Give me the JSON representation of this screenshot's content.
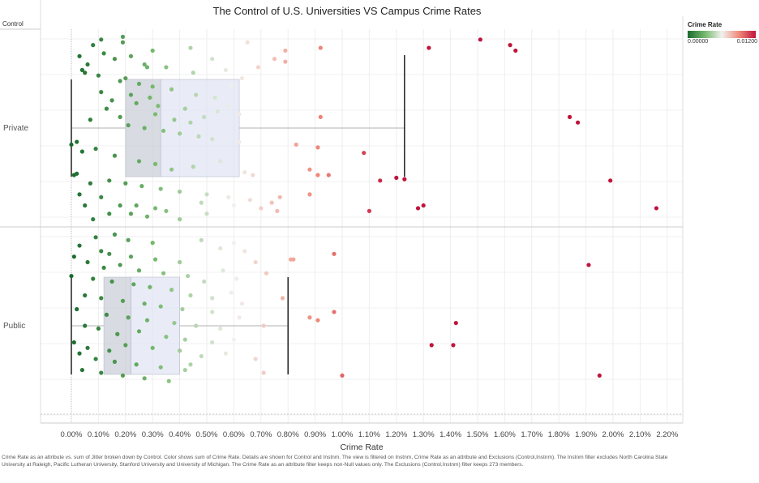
{
  "title": "The Control of U.S. Universities VS Campus Crime Rates",
  "row_header": "Control",
  "legend": {
    "title": "Crime Rate",
    "min_label": "0.00000",
    "max_label": "0.01200",
    "colors": [
      "#1a6b2e",
      "#74b86c",
      "#f1f1ee",
      "#f08c7c",
      "#c0143c"
    ]
  },
  "footnote": "Crime Rate as an attribute vs. sum of Jitter broken down by Control.  Color shows sum of Crime Rate.  Details are shown for Control and Instnm. The view is filtered on Instnm, Crime Rate as an attribute and Exclusions (Control,Instnm). The Instnm filter excludes North Carolina State University at Raleigh, Pacific Lutheran University, Stanford University and University of Michigan. The Crime Rate as an attribute filter keeps non-Null values only. The Exclusions (Control,Instnm) filter keeps 273 members.",
  "chart_data": {
    "type": "scatter",
    "subtype": "jittered strip plot with box plots",
    "xlabel": "Crime Rate",
    "xlim": [
      0,
      0.022
    ],
    "xticks": [
      "0.00%",
      "0.10%",
      "0.20%",
      "0.30%",
      "0.40%",
      "0.50%",
      "0.60%",
      "0.70%",
      "0.80%",
      "0.90%",
      "1.00%",
      "1.10%",
      "1.20%",
      "1.30%",
      "1.40%",
      "1.50%",
      "1.60%",
      "1.70%",
      "1.80%",
      "1.90%",
      "2.00%",
      "2.10%",
      "2.20%"
    ],
    "grid": true,
    "legend_placement": "top-right",
    "categories": [
      "Private",
      "Public"
    ],
    "box_plots": [
      {
        "category": "Private",
        "whisker_low": 0.0,
        "q1": 0.002,
        "median": 0.0033,
        "q3": 0.0062,
        "whisker_high": 0.0123
      },
      {
        "category": "Public",
        "whisker_low": 0.0,
        "q1": 0.0012,
        "median": 0.0022,
        "q3": 0.004,
        "whisker_high": 0.008
      }
    ],
    "series": [
      {
        "name": "Private",
        "points": [
          [
            0.0019,
            0.04
          ],
          [
            0.0011,
            0.08
          ],
          [
            0.0019,
            0.12
          ],
          [
            0.003,
            0.24
          ],
          [
            0.0044,
            0.2
          ],
          [
            0.0065,
            0.12
          ],
          [
            0.0028,
            0.48
          ],
          [
            0.0008,
            0.16
          ],
          [
            0.0003,
            0.32
          ],
          [
            0.0006,
            0.44
          ],
          [
            0.0012,
            0.28
          ],
          [
            0.0016,
            0.36
          ],
          [
            0.0022,
            0.32
          ],
          [
            0.0027,
            0.44
          ],
          [
            0.0035,
            0.48
          ],
          [
            0.0045,
            0.56
          ],
          [
            0.0052,
            0.36
          ],
          [
            0.0057,
            0.52
          ],
          [
            0.0063,
            0.64
          ],
          [
            0.0069,
            0.48
          ],
          [
            0.0075,
            0.36
          ],
          [
            0.0079,
            0.24
          ],
          [
            0.0079,
            0.4
          ],
          [
            0.0092,
            0.2
          ],
          [
            0.0132,
            0.2
          ],
          [
            0.0151,
            0.08
          ],
          [
            0.0162,
            0.16
          ],
          [
            0.0164,
            0.24
          ],
          [
            0.0004,
            0.52
          ],
          [
            0.0005,
            0.56
          ],
          [
            0.001,
            0.6
          ],
          [
            0.0018,
            0.68
          ],
          [
            0.002,
            0.64
          ],
          [
            0.0025,
            0.72
          ],
          [
            0.003,
            0.76
          ],
          [
            0.0037,
            0.8
          ],
          [
            0.0046,
            0.88
          ],
          [
            0.0053,
            0.92
          ],
          [
            0.0059,
            0.76
          ],
          [
            0.0022,
            0.88
          ],
          [
            0.0029,
            0.92
          ],
          [
            0.0011,
            0.84
          ],
          [
            0.0015,
            0.96
          ],
          [
            0.0024,
            1.0
          ],
          [
            0.0032,
            1.04
          ],
          [
            0.0042,
            1.08
          ],
          [
            0.0054,
            1.12
          ],
          [
            0.0062,
            1.16
          ],
          [
            0.0092,
            1.2
          ],
          [
            0.0018,
            1.2
          ],
          [
            0.0031,
            1.16
          ],
          [
            0.0038,
            1.24
          ],
          [
            0.0044,
            1.28
          ],
          [
            0.0049,
            1.2
          ],
          [
            0.0058,
            1.04
          ],
          [
            0.0184,
            1.2
          ],
          [
            0.0187,
            1.28
          ],
          [
            0.0007,
            1.24
          ],
          [
            0.0013,
            1.08
          ],
          [
            0.0021,
            1.32
          ],
          [
            0.0027,
            1.36
          ],
          [
            0.0034,
            1.4
          ],
          [
            0.004,
            1.44
          ],
          [
            0.0047,
            1.48
          ],
          [
            0.0052,
            1.52
          ],
          [
            0.0062,
            1.56
          ],
          [
            0.0083,
            1.6
          ],
          [
            0.0091,
            1.64
          ],
          [
            0.0108,
            1.72
          ],
          [
            0.0002,
            1.56
          ],
          [
            0.0,
            1.6
          ],
          [
            0.0004,
            1.7
          ],
          [
            0.0009,
            1.66
          ],
          [
            0.0016,
            1.76
          ],
          [
            0.0025,
            1.84
          ],
          [
            0.0031,
            1.88
          ],
          [
            0.0037,
            1.96
          ],
          [
            0.0045,
            1.92
          ],
          [
            0.0055,
            1.84
          ],
          [
            0.0064,
            2.0
          ],
          [
            0.0067,
            2.04
          ],
          [
            0.0088,
            1.96
          ],
          [
            0.0091,
            2.04
          ],
          [
            0.0095,
            2.04
          ],
          [
            0.0114,
            2.12
          ],
          [
            0.012,
            2.08
          ],
          [
            0.0123,
            2.1
          ],
          [
            0.0199,
            2.12
          ],
          [
            0.0001,
            2.04
          ],
          [
            0.0002,
            2.02
          ],
          [
            0.0007,
            2.16
          ],
          [
            0.0014,
            2.12
          ],
          [
            0.002,
            2.16
          ],
          [
            0.0026,
            2.2
          ],
          [
            0.0033,
            2.24
          ],
          [
            0.004,
            2.28
          ],
          [
            0.005,
            2.32
          ],
          [
            0.0058,
            2.36
          ],
          [
            0.0066,
            2.4
          ],
          [
            0.0074,
            2.44
          ],
          [
            0.0077,
            2.36
          ],
          [
            0.0088,
            2.32
          ],
          [
            0.0003,
            2.32
          ],
          [
            0.0011,
            2.36
          ],
          [
            0.0018,
            2.48
          ],
          [
            0.0024,
            2.48
          ],
          [
            0.0031,
            2.52
          ],
          [
            0.0048,
            2.44
          ],
          [
            0.006,
            2.48
          ],
          [
            0.007,
            2.52
          ],
          [
            0.0076,
            2.56
          ],
          [
            0.011,
            2.56
          ],
          [
            0.0128,
            2.52
          ],
          [
            0.013,
            2.48
          ],
          [
            0.0216,
            2.52
          ],
          [
            0.0022,
            2.6
          ],
          [
            0.0035,
            2.56
          ],
          [
            0.005,
            2.6
          ],
          [
            0.0005,
            2.48
          ],
          [
            0.0014,
            2.6
          ],
          [
            0.0008,
            2.68
          ],
          [
            0.0028,
            2.64
          ],
          [
            0.004,
            2.68
          ]
        ]
      },
      {
        "name": "Public",
        "points": [
          [
            0.0016,
            0.04
          ],
          [
            0.0009,
            0.08
          ],
          [
            0.0021,
            0.12
          ],
          [
            0.003,
            0.16
          ],
          [
            0.0048,
            0.12
          ],
          [
            0.006,
            0.16
          ],
          [
            0.0055,
            0.24
          ],
          [
            0.0064,
            0.28
          ],
          [
            0.0003,
            0.2
          ],
          [
            0.0011,
            0.28
          ],
          [
            0.0014,
            0.32
          ],
          [
            0.0022,
            0.36
          ],
          [
            0.0031,
            0.4
          ],
          [
            0.004,
            0.44
          ],
          [
            0.0068,
            0.44
          ],
          [
            0.0081,
            0.4
          ],
          [
            0.0097,
            0.32
          ],
          [
            0.0001,
            0.36
          ],
          [
            0.0006,
            0.44
          ],
          [
            0.0012,
            0.52
          ],
          [
            0.0018,
            0.48
          ],
          [
            0.0025,
            0.56
          ],
          [
            0.0034,
            0.6
          ],
          [
            0.0043,
            0.64
          ],
          [
            0.0049,
            0.72
          ],
          [
            0.0056,
            0.56
          ],
          [
            0.0061,
            0.68
          ],
          [
            0.0072,
            0.6
          ],
          [
            0.0082,
            0.4
          ],
          [
            0.0191,
            0.48
          ],
          [
            0.0,
            0.64
          ],
          [
            0.0008,
            0.68
          ],
          [
            0.0015,
            0.72
          ],
          [
            0.0023,
            0.76
          ],
          [
            0.0029,
            0.8
          ],
          [
            0.0037,
            0.84
          ],
          [
            0.0044,
            0.92
          ],
          [
            0.0052,
            0.96
          ],
          [
            0.0059,
            0.88
          ],
          [
            0.0063,
            1.04
          ],
          [
            0.0078,
            0.96
          ],
          [
            0.0005,
            0.92
          ],
          [
            0.0011,
            0.96
          ],
          [
            0.0019,
            1.0
          ],
          [
            0.0027,
            1.04
          ],
          [
            0.0033,
            1.08
          ],
          [
            0.0041,
            1.12
          ],
          [
            0.0052,
            1.16
          ],
          [
            0.0062,
            1.24
          ],
          [
            0.0088,
            1.24
          ],
          [
            0.0097,
            1.16
          ],
          [
            0.0002,
            1.12
          ],
          [
            0.0013,
            1.2
          ],
          [
            0.0021,
            1.24
          ],
          [
            0.0028,
            1.28
          ],
          [
            0.0038,
            1.32
          ],
          [
            0.0046,
            1.36
          ],
          [
            0.0055,
            1.4
          ],
          [
            0.0071,
            1.36
          ],
          [
            0.0091,
            1.28
          ],
          [
            0.0142,
            1.32
          ],
          [
            0.0005,
            1.36
          ],
          [
            0.001,
            1.4
          ],
          [
            0.0017,
            1.48
          ],
          [
            0.0025,
            1.44
          ],
          [
            0.0035,
            1.52
          ],
          [
            0.0042,
            1.56
          ],
          [
            0.0052,
            1.6
          ],
          [
            0.006,
            1.56
          ],
          [
            0.0133,
            1.64
          ],
          [
            0.0141,
            1.64
          ],
          [
            0.0001,
            1.6
          ],
          [
            0.0006,
            1.68
          ],
          [
            0.0014,
            1.72
          ],
          [
            0.002,
            1.64
          ],
          [
            0.003,
            1.68
          ],
          [
            0.004,
            1.72
          ],
          [
            0.0048,
            1.8
          ],
          [
            0.0057,
            1.76
          ],
          [
            0.0068,
            1.84
          ],
          [
            0.0003,
            1.76
          ],
          [
            0.0009,
            1.84
          ],
          [
            0.0016,
            1.88
          ],
          [
            0.0024,
            1.92
          ],
          [
            0.0033,
            1.96
          ],
          [
            0.0044,
            1.92
          ],
          [
            0.0071,
            2.04
          ],
          [
            0.01,
            2.08
          ],
          [
            0.0195,
            2.08
          ],
          [
            0.0004,
            2.0
          ],
          [
            0.0011,
            2.04
          ],
          [
            0.0019,
            2.08
          ],
          [
            0.0027,
            2.12
          ],
          [
            0.0036,
            2.16
          ],
          [
            0.0042,
            2.0
          ]
        ]
      }
    ]
  }
}
